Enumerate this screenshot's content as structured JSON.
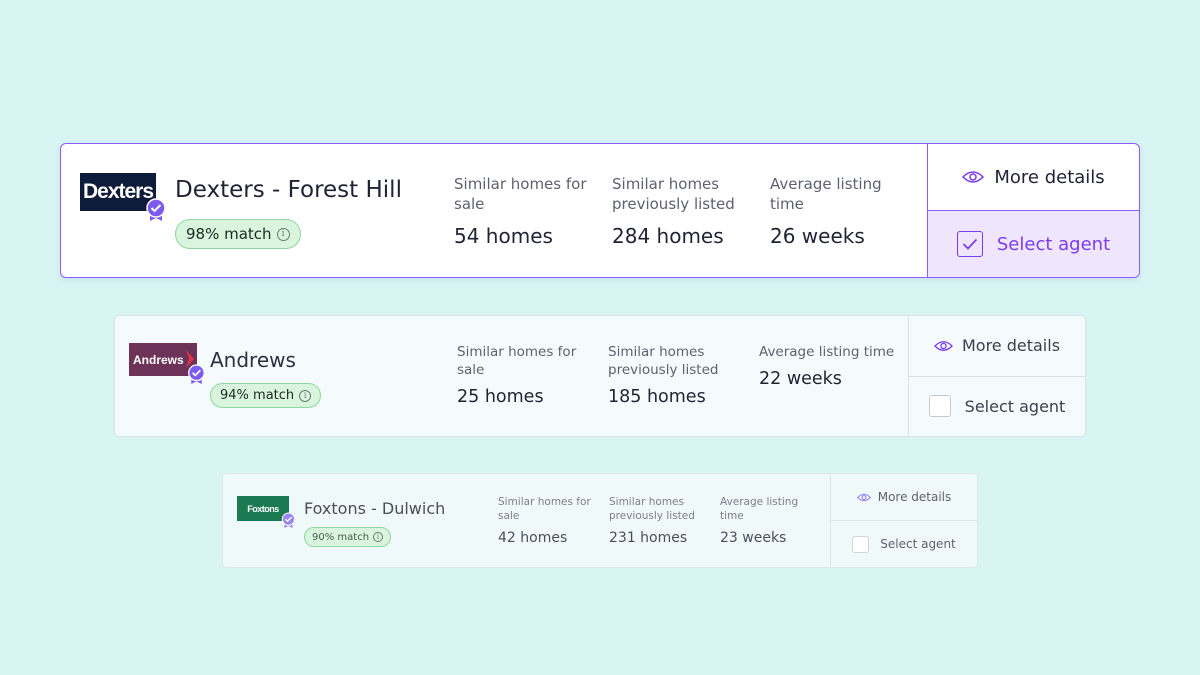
{
  "agents": [
    {
      "logo_text": "Dexters",
      "name": "Dexters - Forest Hill",
      "match": "98% match",
      "stats": [
        {
          "label": "Similar homes for sale",
          "value": "54 homes"
        },
        {
          "label": "Similar homes previously listed",
          "value": "284 homes"
        },
        {
          "label": "Average listing time",
          "value": "26 weeks"
        }
      ],
      "more_details_label": "More details",
      "select_label": "Select agent",
      "selected": true
    },
    {
      "logo_text": "Andrews",
      "name": "Andrews",
      "match": "94% match",
      "stats": [
        {
          "label": "Similar homes for sale",
          "value": "25 homes"
        },
        {
          "label": "Similar homes previously listed",
          "value": "185 homes"
        },
        {
          "label": "Average listing time",
          "value": "22 weeks"
        }
      ],
      "more_details_label": "More details",
      "select_label": "Select agent",
      "selected": false
    },
    {
      "logo_text": "Foxtons",
      "name": "Foxtons - Dulwich",
      "match": "90% match",
      "stats": [
        {
          "label": "Similar homes for sale",
          "value": "42 homes"
        },
        {
          "label": "Similar homes previously listed",
          "value": "231 homes"
        },
        {
          "label": "Average listing time",
          "value": "23 weeks"
        }
      ],
      "more_details_label": "More details",
      "select_label": "Select agent",
      "selected": false
    }
  ],
  "colors": {
    "background": "#d8f5f4",
    "accent": "#7c3aed",
    "selected_bg": "#efe6fd",
    "match_bg": "#d9f5dd",
    "verified": "#7c5cf0"
  }
}
